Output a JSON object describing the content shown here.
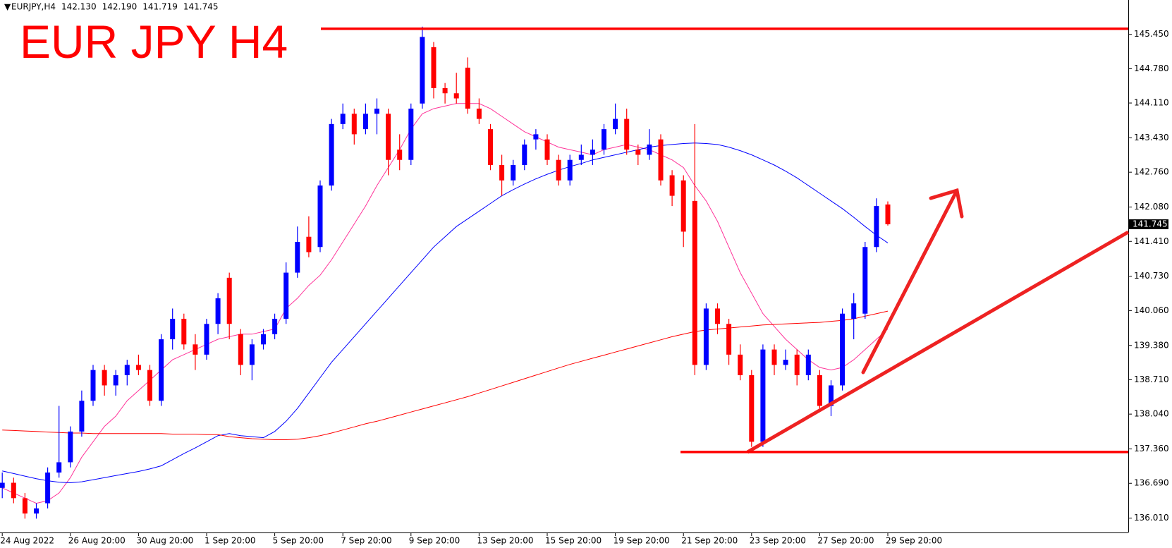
{
  "chart_data": {
    "type": "candlestick",
    "title": "EUR JPY H4",
    "info": [
      "EURJPY,H4",
      "142.130",
      "142.190",
      "141.719",
      "141.745"
    ],
    "categories": [
      "24 Aug 2022",
      null,
      null,
      null,
      null,
      null,
      "26 Aug 20:00",
      null,
      null,
      null,
      null,
      null,
      "30 Aug 20:00",
      null,
      null,
      null,
      null,
      null,
      "1 Sep 20:00",
      null,
      null,
      null,
      null,
      null,
      "5 Sep 20:00",
      null,
      null,
      null,
      null,
      null,
      "7 Sep 20:00",
      null,
      null,
      null,
      null,
      null,
      "9 Sep 20:00",
      null,
      null,
      null,
      null,
      null,
      "13 Sep 20:00",
      null,
      null,
      null,
      null,
      null,
      "15 Sep 20:00",
      null,
      null,
      null,
      null,
      null,
      "19 Sep 20:00",
      null,
      null,
      null,
      null,
      null,
      "21 Sep 20:00",
      null,
      null,
      null,
      null,
      null,
      "23 Sep 20:00",
      null,
      null,
      null,
      null,
      null,
      "27 Sep 20:00",
      null,
      null,
      null,
      null,
      null,
      "29 Sep 20:00"
    ],
    "open": [
      136.6,
      136.7,
      136.4,
      136.1,
      136.3,
      136.9,
      137.1,
      137.7,
      138.3,
      138.9,
      138.6,
      138.8,
      139.0,
      138.9,
      138.3,
      139.5,
      139.9,
      139.4,
      139.2,
      139.8,
      140.7,
      139.6,
      139.0,
      139.4,
      139.6,
      139.9,
      140.8,
      141.5,
      141.3,
      142.5,
      143.7,
      143.9,
      143.6,
      143.9,
      143.9,
      143.2,
      143.0,
      144.1,
      145.2,
      144.4,
      144.3,
      144.8,
      144.0,
      143.6,
      142.9,
      142.6,
      142.9,
      143.4,
      143.4,
      143.0,
      142.6,
      143.0,
      143.1,
      143.2,
      143.6,
      143.8,
      143.2,
      143.1,
      143.4,
      142.7,
      142.6,
      142.2,
      139.0,
      140.1,
      139.8,
      139.2,
      138.8,
      137.5,
      139.3,
      139.0,
      139.2,
      138.8,
      138.8,
      138.2,
      138.6,
      139.9,
      140.0,
      141.3,
      142.13
    ],
    "high": [
      136.9,
      136.8,
      136.5,
      136.3,
      137.0,
      138.2,
      137.8,
      138.5,
      139.0,
      139.0,
      138.9,
      139.1,
      139.2,
      139.0,
      139.6,
      140.1,
      140.0,
      139.6,
      139.9,
      140.4,
      140.8,
      139.7,
      139.5,
      139.7,
      140.0,
      141.0,
      141.7,
      141.9,
      142.6,
      143.8,
      144.1,
      144.0,
      144.1,
      144.2,
      144.0,
      143.5,
      144.1,
      145.6,
      145.3,
      144.5,
      144.7,
      145.0,
      144.2,
      143.7,
      143.1,
      143.0,
      143.4,
      143.6,
      143.5,
      143.1,
      143.1,
      143.3,
      143.4,
      143.7,
      144.1,
      144.0,
      143.3,
      143.6,
      143.5,
      142.8,
      142.7,
      143.7,
      140.2,
      140.2,
      139.9,
      139.4,
      138.9,
      139.4,
      139.4,
      139.3,
      139.3,
      139.3,
      138.9,
      138.7,
      140.1,
      140.4,
      141.4,
      142.25,
      142.19
    ],
    "low": [
      136.4,
      136.3,
      136.0,
      136.0,
      136.2,
      136.8,
      137.0,
      137.6,
      138.2,
      138.4,
      138.4,
      138.6,
      138.8,
      138.2,
      138.2,
      139.3,
      139.3,
      138.9,
      139.1,
      139.6,
      139.5,
      138.8,
      138.7,
      139.3,
      139.5,
      139.8,
      140.7,
      141.1,
      141.2,
      142.4,
      143.6,
      143.3,
      143.5,
      143.5,
      142.7,
      142.8,
      142.9,
      144.0,
      144.2,
      144.1,
      144.1,
      143.9,
      143.7,
      142.8,
      142.3,
      142.5,
      142.8,
      143.2,
      142.9,
      142.5,
      142.5,
      142.9,
      142.9,
      143.1,
      143.5,
      143.1,
      142.9,
      143.0,
      142.5,
      142.1,
      141.3,
      138.8,
      138.9,
      139.6,
      139.0,
      138.7,
      137.4,
      137.4,
      138.8,
      138.9,
      138.6,
      138.7,
      138.1,
      138.0,
      138.5,
      139.5,
      139.9,
      141.2,
      141.719
    ],
    "close": [
      136.7,
      136.4,
      136.1,
      136.2,
      136.9,
      137.1,
      137.7,
      138.3,
      138.9,
      138.6,
      138.8,
      139.0,
      138.9,
      138.3,
      139.5,
      139.9,
      139.4,
      139.2,
      139.8,
      140.3,
      139.8,
      139.0,
      139.4,
      139.6,
      139.9,
      140.8,
      141.4,
      141.2,
      142.5,
      143.7,
      143.9,
      143.5,
      143.9,
      144.0,
      143.0,
      143.0,
      144.0,
      145.4,
      144.4,
      144.3,
      144.2,
      144.0,
      143.8,
      142.9,
      142.6,
      142.9,
      143.3,
      143.5,
      143.0,
      142.6,
      143.0,
      143.1,
      143.2,
      143.6,
      143.8,
      143.2,
      143.1,
      143.3,
      142.6,
      142.3,
      141.6,
      139.0,
      140.1,
      139.8,
      139.2,
      138.8,
      137.5,
      139.3,
      139.0,
      139.1,
      138.8,
      139.2,
      138.2,
      138.6,
      140.0,
      140.2,
      141.3,
      142.1,
      141.745
    ],
    "up_color": "#0000ff",
    "down_color": "#ff0000",
    "series": [
      {
        "color": "#ff3399",
        "values": [
          136.6,
          136.5,
          136.4,
          136.3,
          136.35,
          136.5,
          136.8,
          137.2,
          137.5,
          137.8,
          138.0,
          138.3,
          138.5,
          138.7,
          138.9,
          139.1,
          139.2,
          139.3,
          139.4,
          139.5,
          139.55,
          139.6,
          139.6,
          139.65,
          139.7,
          140.1,
          140.3,
          140.55,
          140.75,
          141.05,
          141.4,
          141.75,
          142.1,
          142.5,
          142.85,
          143.2,
          143.6,
          143.9,
          144.0,
          144.05,
          144.1,
          144.1,
          144.1,
          144.0,
          143.85,
          143.7,
          143.55,
          143.45,
          143.35,
          143.25,
          143.2,
          143.15,
          143.1,
          143.2,
          143.25,
          143.3,
          143.25,
          143.2,
          143.1,
          143.0,
          142.85,
          142.5,
          142.2,
          141.8,
          141.3,
          140.8,
          140.4,
          140.0,
          139.75,
          139.5,
          139.3,
          139.1,
          138.95,
          138.9,
          138.95,
          139.1,
          139.3,
          139.5,
          139.7
        ]
      },
      {
        "color": "#0000ff",
        "values": [
          136.93,
          136.88,
          136.83,
          136.78,
          136.74,
          136.71,
          136.7,
          136.72,
          136.76,
          136.8,
          136.84,
          136.88,
          136.92,
          136.97,
          137.03,
          137.15,
          137.27,
          137.38,
          137.5,
          137.62,
          137.66,
          137.62,
          137.6,
          137.58,
          137.7,
          137.9,
          138.15,
          138.45,
          138.75,
          139.05,
          139.3,
          139.55,
          139.8,
          140.05,
          140.3,
          140.55,
          140.8,
          141.05,
          141.3,
          141.5,
          141.7,
          141.85,
          142.0,
          142.15,
          142.3,
          142.42,
          142.53,
          142.63,
          142.72,
          142.8,
          142.87,
          142.93,
          143.0,
          143.05,
          143.1,
          143.15,
          143.2,
          143.25,
          143.28,
          143.3,
          143.32,
          143.33,
          143.32,
          143.3,
          143.25,
          143.18,
          143.1,
          143.0,
          142.9,
          142.78,
          142.65,
          142.5,
          142.35,
          142.2,
          142.05,
          141.88,
          141.7,
          141.53,
          141.38
        ]
      },
      {
        "color": "#ff0000",
        "values": [
          137.73,
          137.72,
          137.71,
          137.7,
          137.69,
          137.68,
          137.67,
          137.67,
          137.66,
          137.66,
          137.66,
          137.66,
          137.66,
          137.66,
          137.66,
          137.65,
          137.65,
          137.65,
          137.64,
          137.64,
          137.6,
          137.58,
          137.56,
          137.55,
          137.54,
          137.54,
          137.55,
          137.58,
          137.62,
          137.67,
          137.73,
          137.79,
          137.85,
          137.9,
          137.96,
          138.02,
          138.08,
          138.14,
          138.2,
          138.26,
          138.32,
          138.38,
          138.45,
          138.52,
          138.59,
          138.66,
          138.73,
          138.8,
          138.87,
          138.94,
          139.01,
          139.07,
          139.13,
          139.19,
          139.25,
          139.31,
          139.37,
          139.43,
          139.49,
          139.55,
          139.6,
          139.65,
          139.68,
          139.7,
          139.72,
          139.74,
          139.76,
          139.78,
          139.79,
          139.8,
          139.81,
          139.82,
          139.83,
          139.85,
          139.87,
          139.9,
          139.95,
          140.0,
          140.05
        ]
      }
    ],
    "levels": {
      "color": "#ff0000",
      "values": [
        145.56,
        137.3
      ]
    },
    "last_price": {
      "value": 141.745,
      "label": "141.745"
    },
    "ylim": [
      135.73,
      146.12
    ],
    "yticks": [
      {
        "value": 145.45,
        "label": "145.450"
      },
      {
        "value": 144.78,
        "label": "144.780"
      },
      {
        "value": 144.11,
        "label": "144.110"
      },
      {
        "value": 143.43,
        "label": "143.430"
      },
      {
        "value": 142.76,
        "label": "142.760"
      },
      {
        "value": 142.08,
        "label": "142.080"
      },
      {
        "value": 141.41,
        "label": "141.410"
      },
      {
        "value": 140.73,
        "label": "140.730"
      },
      {
        "value": 140.06,
        "label": "140.060"
      },
      {
        "value": 139.38,
        "label": "139.380"
      },
      {
        "value": 138.71,
        "label": "138.710"
      },
      {
        "value": 138.04,
        "label": "138.040"
      },
      {
        "value": 137.36,
        "label": "137.360"
      },
      {
        "value": 136.69,
        "label": "136.690"
      },
      {
        "value": 136.01,
        "label": "136.010"
      }
    ]
  }
}
